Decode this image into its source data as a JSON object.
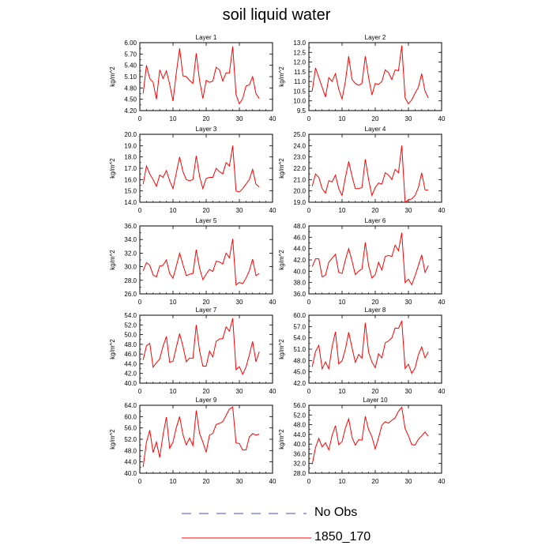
{
  "title": "soil liquid water",
  "legend": [
    {
      "label": "No Obs",
      "color": "#4b4bc8",
      "dash": true
    },
    {
      "label": "1850_170",
      "color": "#ff0000",
      "dash": false
    }
  ],
  "chart_data": [
    {
      "type": "line",
      "title": "Layer 1",
      "ylabel": "kg/m^2",
      "xlim": [
        0,
        40
      ],
      "ylim": [
        4.2,
        6.0
      ],
      "xticks": [
        0,
        10,
        20,
        30,
        40
      ],
      "yticks": [
        "4.20",
        "4.50",
        "4.80",
        "5.10",
        "5.40",
        "5.70",
        "6.00"
      ],
      "series": [
        {
          "color": "#ff0000",
          "x": [
            1,
            2,
            3,
            4,
            5,
            6,
            7,
            8,
            9,
            10,
            11,
            12,
            13,
            14,
            15,
            16,
            17,
            18,
            19,
            20,
            21,
            22,
            23,
            24,
            25,
            26,
            27,
            28,
            29,
            30,
            31,
            32,
            33,
            34,
            35,
            36
          ],
          "y": [
            4.65,
            5.4,
            5.05,
            4.95,
            4.5,
            5.28,
            5.05,
            5.25,
            4.9,
            4.45,
            5.2,
            5.85,
            5.12,
            5.1,
            5.0,
            4.92,
            5.72,
            5.0,
            4.52,
            5.0,
            4.95,
            4.98,
            5.35,
            5.28,
            4.98,
            5.2,
            5.2,
            5.9,
            4.62,
            4.38,
            4.52,
            4.85,
            4.88,
            5.1,
            4.65,
            4.52
          ]
        }
      ]
    },
    {
      "type": "line",
      "title": "Layer 2",
      "ylabel": "kg/m^2",
      "xlim": [
        0,
        40
      ],
      "ylim": [
        9.5,
        13.0
      ],
      "xticks": [
        0,
        10,
        20,
        30,
        40
      ],
      "yticks": [
        "9.5",
        "10.0",
        "10.5",
        "11.0",
        "11.5",
        "12.0",
        "12.5",
        "13.0"
      ],
      "series": [
        {
          "color": "#ff0000",
          "x": [
            1,
            2,
            3,
            4,
            5,
            6,
            7,
            8,
            9,
            10,
            11,
            12,
            13,
            14,
            15,
            16,
            17,
            18,
            19,
            20,
            21,
            22,
            23,
            24,
            25,
            26,
            27,
            28,
            29,
            30,
            31,
            32,
            33,
            34,
            35,
            36
          ],
          "y": [
            10.5,
            11.7,
            11.2,
            10.7,
            10.2,
            11.2,
            11.0,
            11.4,
            10.6,
            10.1,
            11.0,
            12.3,
            11.1,
            10.9,
            10.8,
            10.9,
            12.3,
            11.2,
            10.3,
            10.9,
            10.85,
            11.0,
            11.6,
            11.45,
            11.1,
            11.6,
            11.55,
            12.85,
            10.15,
            9.85,
            10.05,
            10.4,
            10.7,
            11.4,
            10.5,
            10.15
          ]
        }
      ]
    },
    {
      "type": "line",
      "title": "Layer 3",
      "ylabel": "kg/m^2",
      "xlim": [
        0,
        40
      ],
      "ylim": [
        14.0,
        20.0
      ],
      "xticks": [
        0,
        10,
        20,
        30,
        40
      ],
      "yticks": [
        "14.0",
        "15.0",
        "16.0",
        "17.0",
        "18.0",
        "19.0",
        "20.0"
      ],
      "series": [
        {
          "color": "#ff0000",
          "x": [
            1,
            2,
            3,
            4,
            5,
            6,
            7,
            8,
            9,
            10,
            11,
            12,
            13,
            14,
            15,
            16,
            17,
            18,
            19,
            20,
            21,
            22,
            23,
            24,
            25,
            26,
            27,
            28,
            29,
            30,
            31,
            32,
            33,
            34,
            35,
            36
          ],
          "y": [
            15.6,
            17.2,
            16.5,
            16.0,
            15.4,
            16.4,
            16.2,
            16.8,
            15.9,
            15.2,
            16.6,
            18.0,
            16.7,
            16.0,
            15.9,
            16.0,
            18.1,
            16.3,
            15.2,
            16.1,
            16.2,
            16.2,
            17.0,
            16.7,
            16.5,
            17.5,
            17.2,
            19.0,
            15.0,
            14.9,
            15.2,
            15.6,
            16.0,
            16.9,
            15.6,
            15.35
          ]
        }
      ]
    },
    {
      "type": "line",
      "title": "Layer 4",
      "ylabel": "kg/m^2",
      "xlim": [
        0,
        40
      ],
      "ylim": [
        19.0,
        25.0
      ],
      "xticks": [
        0,
        10,
        20,
        30,
        40
      ],
      "yticks": [
        "19.0",
        "20.0",
        "21.0",
        "22.0",
        "23.0",
        "24.0",
        "25.0"
      ],
      "series": [
        {
          "color": "#ff0000",
          "x": [
            1,
            2,
            3,
            4,
            5,
            6,
            7,
            8,
            9,
            10,
            11,
            12,
            13,
            14,
            15,
            16,
            17,
            18,
            19,
            20,
            21,
            22,
            23,
            24,
            25,
            26,
            27,
            28,
            29,
            30,
            31,
            32,
            33,
            34,
            35,
            36
          ],
          "y": [
            20.4,
            21.5,
            21.2,
            20.2,
            19.8,
            20.9,
            20.8,
            21.4,
            20.2,
            19.6,
            21.2,
            22.6,
            21.3,
            20.2,
            20.2,
            20.3,
            22.8,
            21.0,
            19.6,
            20.3,
            20.7,
            20.6,
            21.6,
            21.4,
            21.0,
            21.9,
            21.6,
            24.0,
            19.0,
            19.2,
            19.3,
            19.6,
            20.3,
            21.6,
            20.1,
            20.05
          ]
        }
      ]
    },
    {
      "type": "line",
      "title": "Layer 5",
      "ylabel": "kg/m^2",
      "xlim": [
        0,
        40
      ],
      "ylim": [
        26.0,
        36.0
      ],
      "xticks": [
        0,
        10,
        20,
        30,
        40
      ],
      "yticks": [
        "26.0",
        "28.0",
        "30.0",
        "32.0",
        "34.0",
        "36.0"
      ],
      "series": [
        {
          "color": "#ff0000",
          "x": [
            1,
            2,
            3,
            4,
            5,
            6,
            7,
            8,
            9,
            10,
            11,
            12,
            13,
            14,
            15,
            16,
            17,
            18,
            19,
            20,
            21,
            22,
            23,
            24,
            25,
            26,
            27,
            28,
            29,
            30,
            31,
            32,
            33,
            34,
            35,
            36
          ],
          "y": [
            29.4,
            30.6,
            30.2,
            28.8,
            28.5,
            30.1,
            30.2,
            31.0,
            29.0,
            28.3,
            30.1,
            32.0,
            30.3,
            28.7,
            28.9,
            29.0,
            32.5,
            29.8,
            28.1,
            28.9,
            29.6,
            29.3,
            30.8,
            30.7,
            30.4,
            32.0,
            31.3,
            34.1,
            27.3,
            27.7,
            27.5,
            28.3,
            29.4,
            31.1,
            28.7,
            29.0
          ]
        }
      ]
    },
    {
      "type": "line",
      "title": "Layer 6",
      "ylabel": "kg/m^2",
      "xlim": [
        0,
        40
      ],
      "ylim": [
        36.0,
        48.0
      ],
      "xticks": [
        0,
        10,
        20,
        30,
        40
      ],
      "yticks": [
        "36.0",
        "38.0",
        "40.0",
        "42.0",
        "44.0",
        "46.0",
        "48.0"
      ],
      "series": [
        {
          "color": "#ff0000",
          "x": [
            1,
            2,
            3,
            4,
            5,
            6,
            7,
            8,
            9,
            10,
            11,
            12,
            13,
            14,
            15,
            16,
            17,
            18,
            19,
            20,
            21,
            22,
            23,
            24,
            25,
            26,
            27,
            28,
            29,
            30,
            31,
            32,
            33,
            34,
            35,
            36
          ],
          "y": [
            40.8,
            42.2,
            42.2,
            39.0,
            39.3,
            41.6,
            42.3,
            43.0,
            39.8,
            39.6,
            42.0,
            44.0,
            41.8,
            39.4,
            40.0,
            40.4,
            45.1,
            41.0,
            38.8,
            39.4,
            41.6,
            40.2,
            42.6,
            42.8,
            42.6,
            44.6,
            43.6,
            46.8,
            38.0,
            38.6,
            37.6,
            39.2,
            41.0,
            42.9,
            39.8,
            41.0
          ]
        }
      ]
    },
    {
      "type": "line",
      "title": "Layer 7",
      "ylabel": "kg/m^2",
      "xlim": [
        0,
        40
      ],
      "ylim": [
        40.0,
        54.0
      ],
      "xticks": [
        0,
        10,
        20,
        30,
        40
      ],
      "yticks": [
        "40.0",
        "42.0",
        "44.0",
        "46.0",
        "48.0",
        "50.0",
        "52.0",
        "54.0"
      ],
      "series": [
        {
          "color": "#ff0000",
          "x": [
            1,
            2,
            3,
            4,
            5,
            6,
            7,
            8,
            9,
            10,
            11,
            12,
            13,
            14,
            15,
            16,
            17,
            18,
            19,
            20,
            21,
            22,
            23,
            24,
            25,
            26,
            27,
            28,
            29,
            30,
            31,
            32,
            33,
            34,
            35,
            36
          ],
          "y": [
            44.8,
            47.7,
            48.2,
            43.3,
            44.2,
            45.0,
            47.6,
            49.6,
            44.3,
            44.5,
            47.4,
            50.2,
            47.6,
            44.4,
            45.2,
            45.1,
            52.0,
            46.7,
            43.5,
            43.5,
            46.6,
            45.4,
            48.6,
            49.1,
            49.2,
            51.6,
            50.7,
            53.4,
            42.8,
            43.4,
            41.8,
            43.3,
            45.8,
            48.6,
            44.4,
            46.5
          ]
        }
      ]
    },
    {
      "type": "line",
      "title": "Layer 8",
      "ylabel": "kg/m^2",
      "xlim": [
        0,
        40
      ],
      "ylim": [
        42.0,
        60.0
      ],
      "xticks": [
        0,
        10,
        20,
        30,
        40
      ],
      "yticks": [
        "42.0",
        "45.0",
        "48.0",
        "51.0",
        "54.0",
        "57.0",
        "60.0"
      ],
      "series": [
        {
          "color": "#ff0000",
          "x": [
            1,
            2,
            3,
            4,
            5,
            6,
            7,
            8,
            9,
            10,
            11,
            12,
            13,
            14,
            15,
            16,
            17,
            18,
            19,
            20,
            21,
            22,
            23,
            24,
            25,
            26,
            27,
            28,
            29,
            30,
            31,
            32,
            33,
            34,
            35,
            36
          ],
          "y": [
            46.3,
            50.4,
            52.0,
            45.8,
            47.6,
            45.8,
            51.6,
            55.6,
            47.1,
            47.9,
            51.0,
            55.5,
            51.4,
            47.5,
            49.6,
            48.6,
            58.0,
            50.2,
            47.6,
            46.1,
            49.8,
            48.7,
            52.7,
            53.2,
            54.0,
            56.6,
            56.5,
            58.5,
            45.9,
            47.0,
            44.6,
            46.0,
            49.5,
            51.6,
            48.7,
            50.3
          ]
        }
      ]
    },
    {
      "type": "line",
      "title": "Layer 9",
      "ylabel": "kg/m^2",
      "xlim": [
        0,
        40
      ],
      "ylim": [
        40.0,
        64.0
      ],
      "xticks": [
        0,
        10,
        20,
        30,
        40
      ],
      "yticks": [
        "40.0",
        "44.0",
        "48.0",
        "52.0",
        "56.0",
        "60.0",
        "64.0"
      ],
      "series": [
        {
          "color": "#ff0000",
          "x": [
            1,
            2,
            3,
            4,
            5,
            6,
            7,
            8,
            9,
            10,
            11,
            12,
            13,
            14,
            15,
            16,
            17,
            18,
            19,
            20,
            21,
            22,
            23,
            24,
            25,
            26,
            27,
            28,
            29,
            30,
            31,
            32,
            33,
            34,
            35,
            36
          ],
          "y": [
            42.2,
            51.0,
            55.2,
            47.3,
            51.0,
            45.6,
            53.6,
            59.8,
            48.8,
            51.0,
            56.1,
            60.0,
            53.6,
            50.0,
            52.4,
            49.8,
            62.2,
            54.1,
            51.0,
            47.4,
            53.5,
            54.0,
            57.2,
            57.6,
            58.2,
            60.4,
            62.6,
            63.4,
            50.7,
            50.5,
            48.2,
            48.2,
            52.8,
            54.0,
            53.4,
            53.8
          ]
        }
      ]
    },
    {
      "type": "line",
      "title": "Layer 10",
      "ylabel": "kg/m^2",
      "xlim": [
        0,
        40
      ],
      "ylim": [
        28.0,
        56.0
      ],
      "xticks": [
        0,
        10,
        20,
        30,
        40
      ],
      "yticks": [
        "28.0",
        "32.0",
        "36.0",
        "40.0",
        "44.0",
        "48.0",
        "52.0",
        "56.0"
      ],
      "series": [
        {
          "color": "#ff0000",
          "x": [
            1,
            2,
            3,
            4,
            5,
            6,
            7,
            8,
            9,
            10,
            11,
            12,
            13,
            14,
            15,
            16,
            17,
            18,
            19,
            20,
            21,
            22,
            23,
            24,
            25,
            26,
            27,
            28,
            29,
            30,
            31,
            32,
            33,
            34,
            35,
            36
          ],
          "y": [
            31.6,
            38.6,
            42.4,
            38.8,
            40.6,
            37.6,
            43.6,
            47.6,
            39.8,
            41.0,
            46.6,
            50.4,
            42.8,
            39.6,
            41.8,
            41.6,
            51.4,
            46.0,
            43.0,
            38.0,
            42.6,
            47.8,
            49.2,
            48.6,
            49.8,
            50.8,
            53.6,
            55.2,
            46.4,
            43.4,
            39.8,
            39.6,
            42.0,
            43.4,
            45.0,
            43.2
          ]
        }
      ]
    }
  ]
}
